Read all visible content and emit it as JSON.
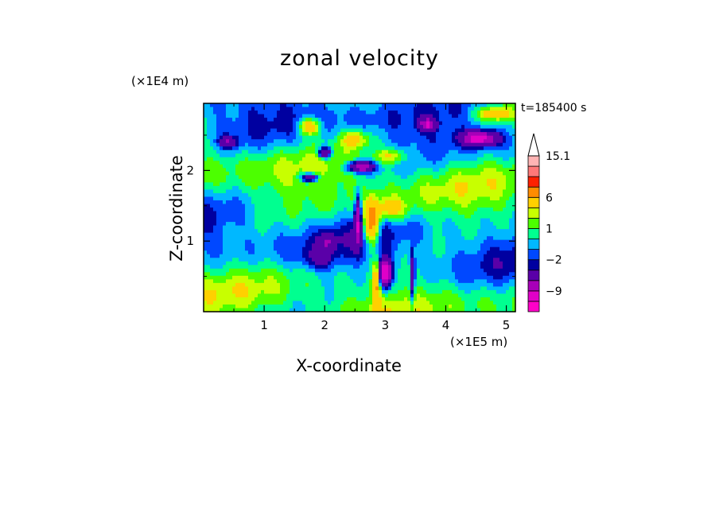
{
  "chart_data": {
    "type": "heatmap",
    "title": "zonal velocity",
    "xlabel": "X-coordinate",
    "ylabel": "Z-coordinate",
    "x_unit": "(×1E5 m)",
    "y_unit": "(×1E4 m)",
    "time_label": "t=185400 s",
    "xlim": [
      0,
      5.15
    ],
    "ylim": [
      0,
      2.95
    ],
    "x_ticks": [
      1,
      2,
      3,
      4,
      5
    ],
    "y_ticks": [
      1,
      2
    ],
    "grid": false,
    "colorbar": {
      "labels": [
        "15.1",
        "6",
        "1",
        "−2",
        "−9"
      ],
      "label_values": [
        15.1,
        6,
        1,
        -2,
        -9
      ],
      "levels": [
        -15,
        -12,
        -9,
        -6,
        -3,
        -2,
        -1,
        0,
        1,
        2,
        3,
        6,
        9,
        12,
        15.1
      ],
      "colors": [
        "#ff00c8",
        "#e000c8",
        "#a800b8",
        "#5a00a8",
        "#0000a0",
        "#0048ff",
        "#00b8ff",
        "#00ff90",
        "#4cff00",
        "#c8ff00",
        "#ffd000",
        "#ff8c00",
        "#ff2000",
        "#ff7878",
        "#ffb4b4"
      ],
      "extend_max": true
    }
  }
}
